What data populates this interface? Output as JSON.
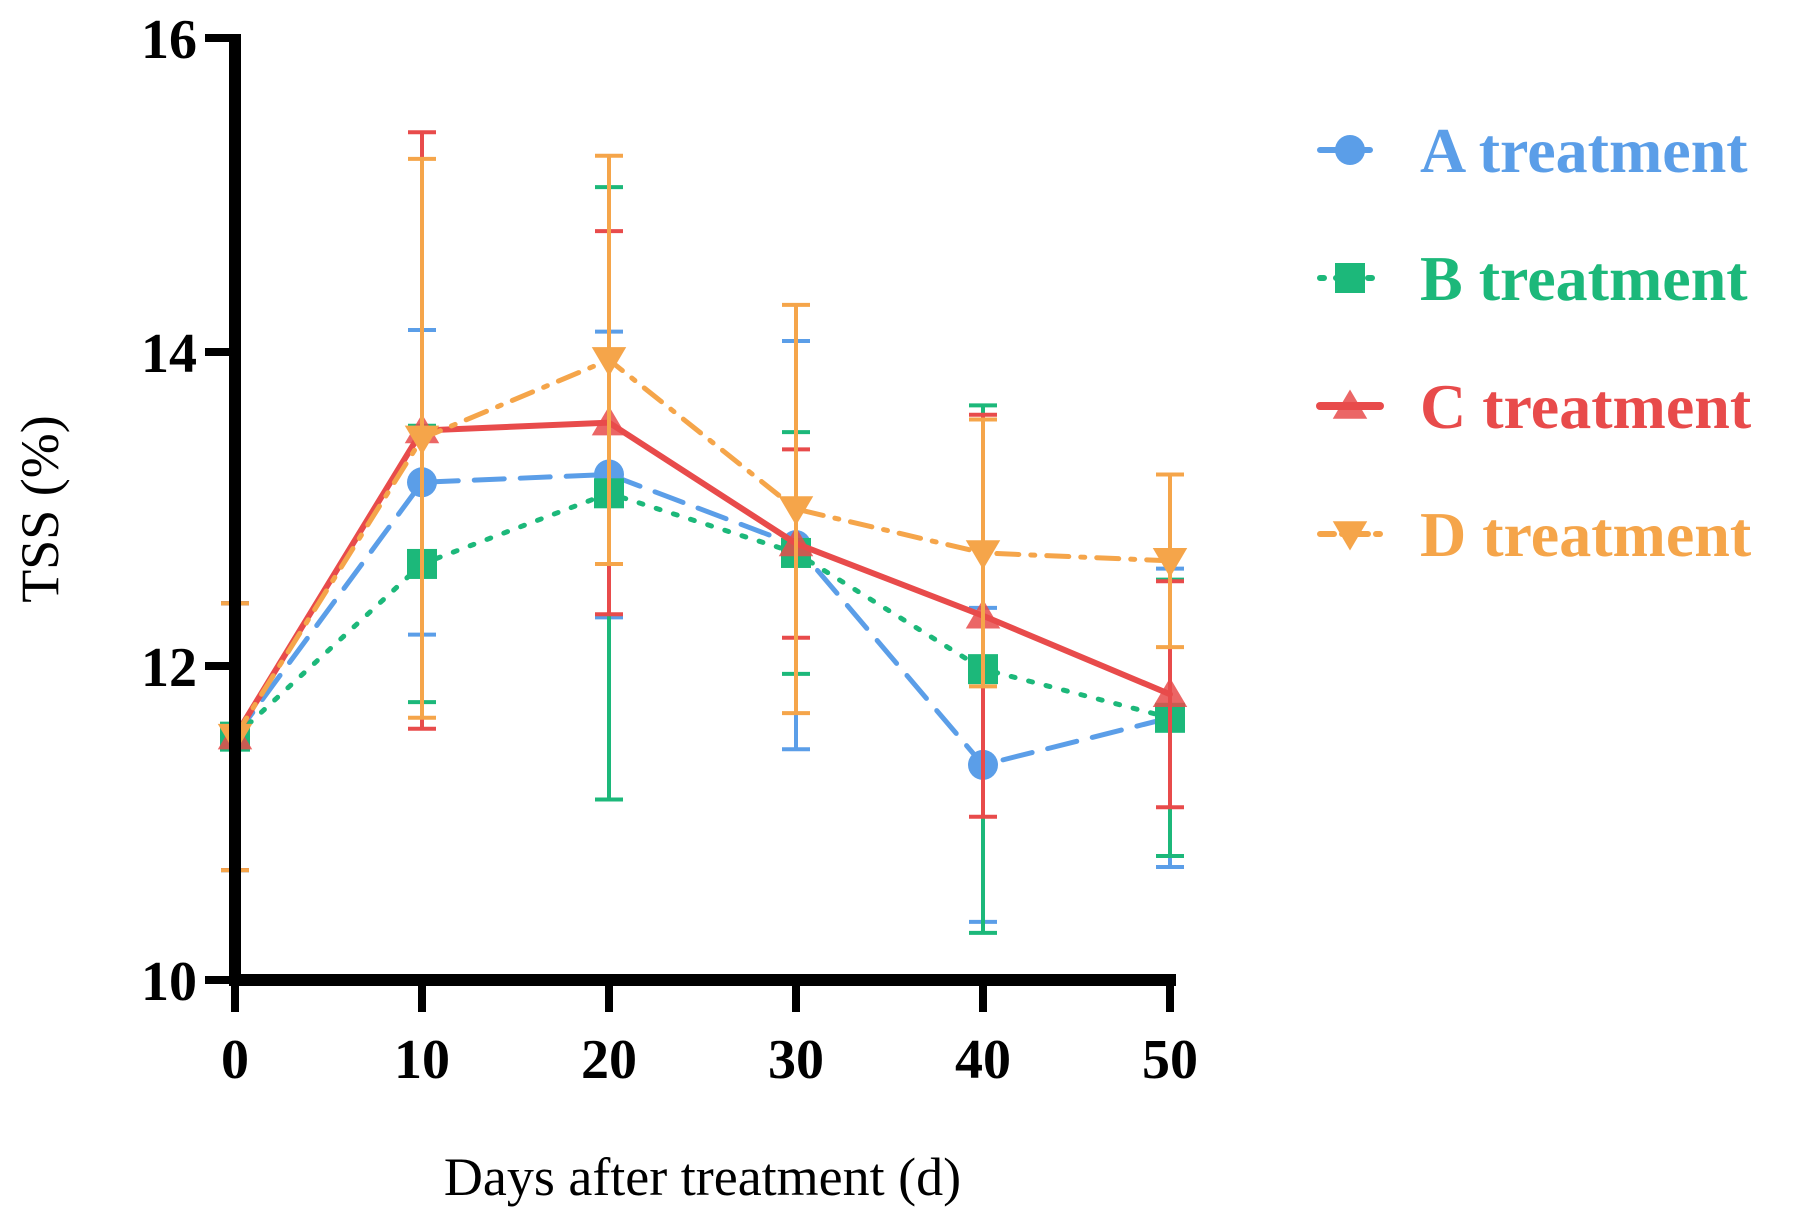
{
  "chart_data": {
    "type": "line",
    "title": "",
    "xlabel": "Days after treatment (d)",
    "ylabel": "TSS (%)",
    "x": [
      0,
      10,
      20,
      30,
      40,
      50
    ],
    "xticks": [
      "0",
      "10",
      "20",
      "30",
      "40",
      "50"
    ],
    "yticks": [
      "10",
      "12",
      "14",
      "16"
    ],
    "xlim": [
      0,
      50
    ],
    "ylim": [
      10,
      16
    ],
    "grid": false,
    "legend_position": "right",
    "series": [
      {
        "name": "A treatment",
        "color": "#5b9ee8",
        "marker": "circle",
        "line_style": "dashed",
        "values": [
          11.55,
          13.17,
          13.22,
          12.77,
          11.37,
          11.67
        ],
        "errors": [
          0.85,
          0.97,
          0.91,
          1.3,
          1.0,
          0.95
        ]
      },
      {
        "name": "B treatment",
        "color": "#1cb87a",
        "marker": "square",
        "line_style": "dotted",
        "values": [
          11.55,
          12.65,
          13.1,
          12.72,
          11.98,
          11.67
        ],
        "errors": [
          0.85,
          0.88,
          1.95,
          0.77,
          1.68,
          0.88
        ]
      },
      {
        "name": "C treatment",
        "color": "#e84b4b",
        "marker": "triangle-up",
        "line_style": "solid",
        "values": [
          11.55,
          13.5,
          13.55,
          12.78,
          12.32,
          11.82
        ],
        "errors": [
          0.85,
          1.9,
          1.22,
          0.6,
          1.28,
          0.72
        ]
      },
      {
        "name": "D treatment",
        "color": "#f5a54a",
        "marker": "triangle-down",
        "line_style": "dashdot",
        "values": [
          11.55,
          13.45,
          13.95,
          13.0,
          12.72,
          12.67
        ],
        "errors": [
          0.85,
          1.78,
          1.3,
          1.3,
          0.85,
          0.55
        ]
      }
    ]
  }
}
